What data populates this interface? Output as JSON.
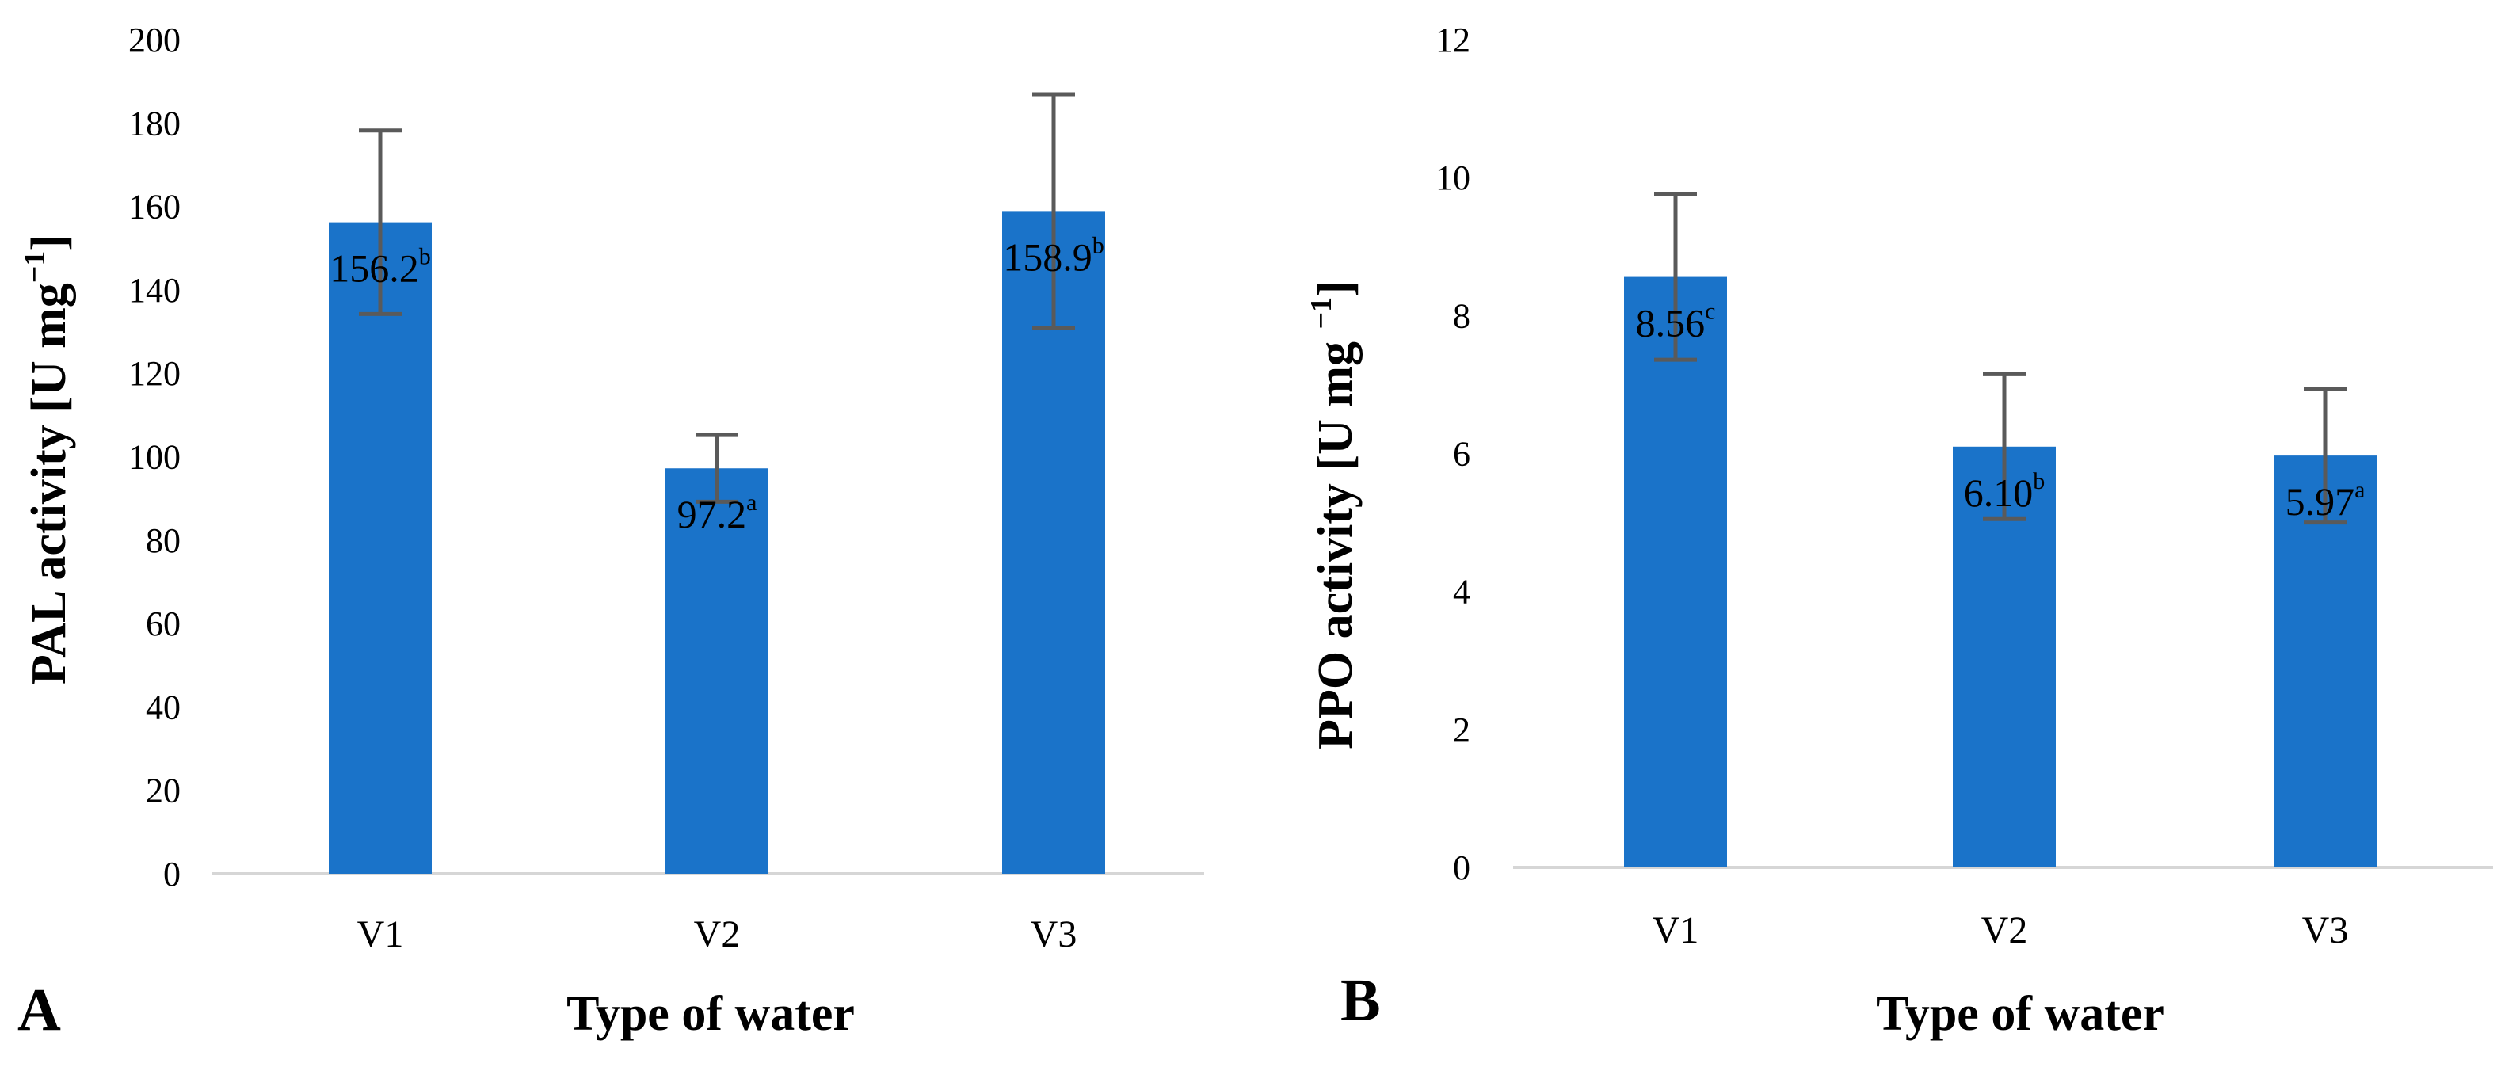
{
  "chart_data": [
    {
      "type": "bar",
      "panel": "A",
      "categories": [
        "V1",
        "V2",
        "V3"
      ],
      "values": [
        156.2,
        97.2,
        158.9
      ],
      "errors": [
        22,
        8,
        28
      ],
      "value_labels": [
        "156.2",
        "97.2",
        "158.9"
      ],
      "superscripts": [
        "b",
        "a",
        "b"
      ],
      "xlabel": "Type of water",
      "ylabel_main": "PAL activity  [U mg",
      "ylabel_sup": "−1",
      "ylabel_close": "]",
      "ylim": [
        0,
        200
      ],
      "yticks": [
        "0",
        "20",
        "40",
        "60",
        "80",
        "100",
        "120",
        "140",
        "160",
        "180",
        "200"
      ],
      "bar_color": "#1a73c9",
      "error_color": "#5a5a5a"
    },
    {
      "type": "bar",
      "panel": "B",
      "categories": [
        "V1",
        "V2",
        "V3"
      ],
      "values": [
        8.56,
        6.1,
        5.97
      ],
      "errors": [
        1.2,
        1.05,
        0.97
      ],
      "value_labels": [
        "8.56",
        "6.10",
        "5.97"
      ],
      "superscripts": [
        "c",
        "b",
        "a"
      ],
      "xlabel": "Type of water",
      "ylabel_main": "PPO activity [U mg ",
      "ylabel_sup": "−1",
      "ylabel_close": "]",
      "ylim": [
        0,
        12
      ],
      "yticks": [
        "0",
        "2",
        "4",
        "6",
        "8",
        "10",
        "12"
      ],
      "bar_color": "#1a73c9",
      "error_color": "#5a5a5a"
    }
  ]
}
